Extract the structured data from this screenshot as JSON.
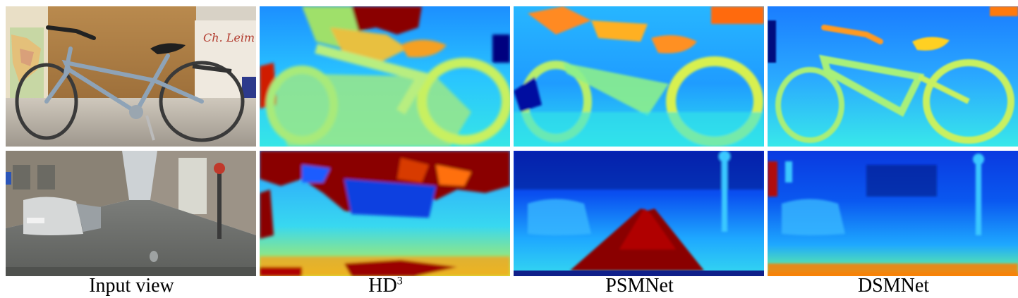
{
  "figure": {
    "columns": [
      {
        "label": "Input view"
      },
      {
        "label": "HD",
        "sup": "3"
      },
      {
        "label": "PSMNet"
      },
      {
        "label": "DSMNet"
      }
    ],
    "scenes": [
      "bicycle",
      "street"
    ],
    "poster_text": "Ch. Leim"
  },
  "colors": {
    "jet_dark_blue": "#00007f",
    "jet_blue": "#0050ff",
    "jet_cyan": "#20c8ff",
    "jet_green": "#7fff7f",
    "jet_yellow": "#ffdf10",
    "jet_orange": "#ff7f00",
    "jet_dark_red": "#800000"
  }
}
